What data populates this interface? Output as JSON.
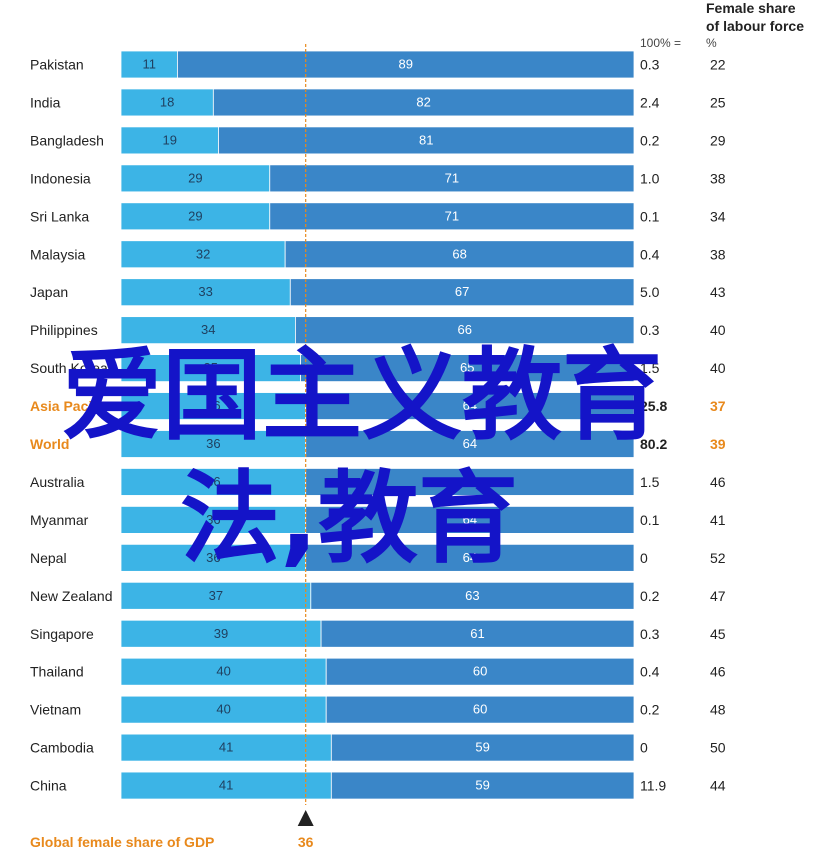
{
  "header": {
    "top_cropped": "",
    "right_title_line1": "Female share",
    "right_title_line2": "of labour force",
    "pct_col_label": "100% =",
    "share_col_label": "%"
  },
  "footer": {
    "label": "Global female share of GDP",
    "value": "36"
  },
  "watermark": {
    "line1": "爱国主义教育",
    "line2": "法,教育"
  },
  "colors": {
    "light_bar": "#3cb4e6",
    "dark_bar": "#3a86c8",
    "bar_border": "#ffffff",
    "highlight": "#e8891c",
    "marker": "#e8891c",
    "watermark": "#1414c8"
  },
  "chart_data": {
    "type": "bar",
    "stacked": true,
    "orientation": "horizontal",
    "categories": [
      "Pakistan",
      "India",
      "Bangladesh",
      "Indonesia",
      "Sri Lanka",
      "Malaysia",
      "Japan",
      "Philippines",
      "South Korea",
      "Asia Pacific",
      "World",
      "Australia",
      "Myanmar",
      "Nepal",
      "New Zealand",
      "Singapore",
      "Thailand",
      "Vietnam",
      "Cambodia",
      "China"
    ],
    "category_labels": [
      "Pakistan",
      "India",
      "Bangladesh",
      "Indonesia",
      "Sri Lanka",
      "Malaysia",
      "Japan",
      "Philippines",
      "South Korea",
      "Asia Pacific",
      "World",
      "Australia",
      "Myanmar",
      "Nepal",
      "New Zealand",
      "Singapore",
      "Thailand",
      "Vietnam",
      "Cambodia",
      "China"
    ],
    "highlighted": [
      "Asia Pacific",
      "World"
    ],
    "series": [
      {
        "values": [
          11,
          18,
          19,
          29,
          29,
          32,
          33,
          34,
          35,
          36,
          36,
          36,
          36,
          36,
          37,
          39,
          40,
          40,
          41,
          41
        ]
      },
      {
        "values": [
          89,
          82,
          81,
          71,
          71,
          68,
          67,
          66,
          65,
          64,
          64,
          64,
          64,
          64,
          63,
          61,
          60,
          60,
          59,
          59
        ]
      }
    ],
    "segment_labels": {
      "first": [
        "11",
        "18",
        "19",
        "29",
        "29",
        "32",
        "33",
        "34",
        "35",
        "36",
        "36",
        "36",
        "36",
        "36",
        "37",
        "39",
        "40",
        "40",
        "41",
        "41"
      ],
      "second": [
        "89",
        "82",
        "81",
        "71",
        "71",
        "68",
        "67",
        "66",
        "65",
        "64",
        "64",
        "64",
        "64",
        "64",
        "63",
        "61",
        "60",
        "60",
        "59",
        "59"
      ]
    },
    "gdp_100pct": [
      "0.3",
      "2.4",
      "0.2",
      "1.0",
      "0.1",
      "0.4",
      "5.0",
      "0.3",
      "1.5",
      "25.8",
      "80.2",
      "1.5",
      "0.1",
      "0",
      "0.2",
      "0.3",
      "0.4",
      "0.2",
      "0",
      "11.9"
    ],
    "labour_share": [
      "22",
      "25",
      "29",
      "38",
      "34",
      "38",
      "43",
      "40",
      "40",
      "37",
      "39",
      "46",
      "41",
      "52",
      "47",
      "45",
      "46",
      "48",
      "50",
      "44"
    ],
    "reference_line": 36,
    "xlim": [
      0,
      100
    ]
  }
}
